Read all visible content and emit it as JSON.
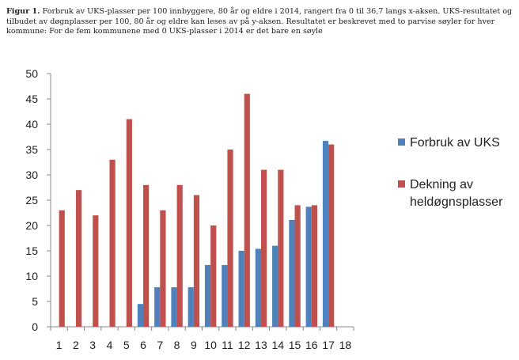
{
  "caption": {
    "label": "Figur 1.",
    "text": "Forbruk av UKS-plasser per 100 innbyggere, 80 år og eldre i 2014, rangert fra 0 til 36,7 langs x-aksen.  UKS-resultatet og tilbudet av døgnplasser per 100, 80 år og eldre kan leses av på y-aksen.  Resultatet er beskrevet med to parvise søyler for hver kommune: For de fem kommunene med 0 UKS-plasser i 2014 er det bare en søyle"
  },
  "chart_data": {
    "type": "bar",
    "categories": [
      "1",
      "2",
      "3",
      "4",
      "5",
      "6",
      "7",
      "8",
      "9",
      "10",
      "11",
      "12",
      "13",
      "14",
      "15",
      "16",
      "17",
      "18"
    ],
    "series": [
      {
        "name": "Forbruk av UKS",
        "color": "#4f81bd",
        "values": [
          0,
          0,
          0,
          0,
          0,
          4.5,
          7.8,
          7.8,
          7.8,
          12.2,
          12.2,
          15,
          15.4,
          16,
          21.1,
          23.7,
          36.7,
          null
        ]
      },
      {
        "name": "Dekning av heldøgnsplasser",
        "color": "#c0504d",
        "values": [
          23,
          27,
          22,
          33,
          41,
          28,
          23,
          28,
          26,
          20,
          35,
          46,
          31,
          31,
          24,
          24,
          36,
          null
        ]
      }
    ],
    "ylim": [
      0,
      50
    ],
    "yticks": [
      0,
      5,
      10,
      15,
      20,
      25,
      30,
      35,
      40,
      45,
      50
    ],
    "grid": false,
    "legend": "right",
    "legend_labels": [
      [
        "Forbruk av UKS"
      ],
      [
        "Dekning av",
        "heldøgnsplasser"
      ]
    ]
  }
}
